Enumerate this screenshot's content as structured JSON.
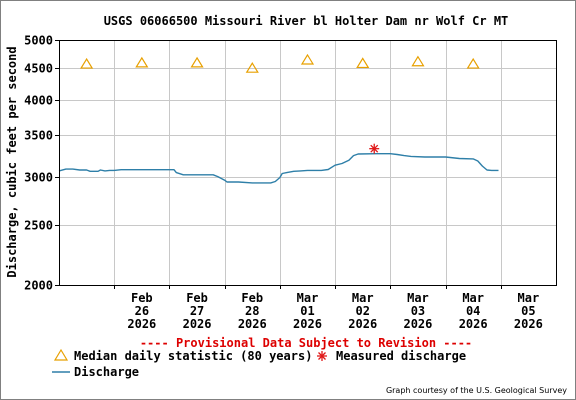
{
  "chart_data": {
    "type": "line",
    "title": "USGS 06066500 Missouri River bl Holter Dam nr Wolf Cr MT",
    "ylabel": "Discharge, cubic feet per second",
    "xlabel": "",
    "y_scale": "log",
    "ylim": [
      2000,
      5000
    ],
    "y_ticks": [
      {
        "value": 2000,
        "label": "2000"
      },
      {
        "value": 2500,
        "label": "2500"
      },
      {
        "value": 3000,
        "label": "3000"
      },
      {
        "value": 3500,
        "label": "3500"
      },
      {
        "value": 4000,
        "label": "4000"
      },
      {
        "value": 4500,
        "label": "4500"
      },
      {
        "value": 5000,
        "label": "5000"
      }
    ],
    "x_range": [
      "2026-02-25T00:00",
      "2026-03-06T00:00"
    ],
    "x_ticks": [
      {
        "date": "2026-02-26T00:00",
        "label": [
          "Feb",
          "26",
          "2026"
        ]
      },
      {
        "date": "2026-02-27T00:00",
        "label": [
          "Feb",
          "27",
          "2026"
        ]
      },
      {
        "date": "2026-02-28T00:00",
        "label": [
          "Feb",
          "28",
          "2026"
        ]
      },
      {
        "date": "2026-03-01T00:00",
        "label": [
          "Mar",
          "01",
          "2026"
        ]
      },
      {
        "date": "2026-03-02T00:00",
        "label": [
          "Mar",
          "02",
          "2026"
        ]
      },
      {
        "date": "2026-03-03T00:00",
        "label": [
          "Mar",
          "03",
          "2026"
        ]
      },
      {
        "date": "2026-03-04T00:00",
        "label": [
          "Mar",
          "04",
          "2026"
        ]
      },
      {
        "date": "2026-03-05T00:00",
        "label": [
          "Mar",
          "05",
          "2026"
        ]
      }
    ],
    "grid": true,
    "colors": {
      "discharge": "#2e7fa8",
      "median": "#e8a000",
      "measured": "#e01818",
      "provisional": "#dd0000",
      "grid": "#c8c8c8",
      "axis": "#000000"
    },
    "series": [
      {
        "name": "Discharge",
        "kind": "line",
        "points": [
          [
            "2026-02-25T00:00",
            3065
          ],
          [
            "2026-02-25T03:00",
            3085
          ],
          [
            "2026-02-25T06:00",
            3085
          ],
          [
            "2026-02-25T09:00",
            3075
          ],
          [
            "2026-02-25T12:00",
            3075
          ],
          [
            "2026-02-25T13:30",
            3060
          ],
          [
            "2026-02-25T17:00",
            3060
          ],
          [
            "2026-02-25T18:00",
            3075
          ],
          [
            "2026-02-25T20:00",
            3065
          ],
          [
            "2026-02-25T22:00",
            3070
          ],
          [
            "2026-02-26T00:00",
            3070
          ],
          [
            "2026-02-26T03:00",
            3078
          ],
          [
            "2026-02-26T12:00",
            3078
          ],
          [
            "2026-02-26T22:00",
            3078
          ],
          [
            "2026-02-27T02:00",
            3078
          ],
          [
            "2026-02-27T03:00",
            3045
          ],
          [
            "2026-02-27T06:00",
            3020
          ],
          [
            "2026-02-27T19:00",
            3020
          ],
          [
            "2026-02-27T21:00",
            3000
          ],
          [
            "2026-02-28T00:00",
            2960
          ],
          [
            "2026-02-28T01:00",
            2940
          ],
          [
            "2026-02-28T06:00",
            2940
          ],
          [
            "2026-02-28T12:00",
            2930
          ],
          [
            "2026-02-28T20:00",
            2930
          ],
          [
            "2026-02-28T22:00",
            2945
          ],
          [
            "2026-03-01T00:00",
            2990
          ],
          [
            "2026-03-01T01:00",
            3035
          ],
          [
            "2026-03-01T03:00",
            3045
          ],
          [
            "2026-03-01T06:00",
            3060
          ],
          [
            "2026-03-01T09:00",
            3065
          ],
          [
            "2026-03-01T12:00",
            3070
          ],
          [
            "2026-03-01T18:00",
            3070
          ],
          [
            "2026-03-01T21:00",
            3080
          ],
          [
            "2026-03-02T00:00",
            3130
          ],
          [
            "2026-03-02T03:00",
            3150
          ],
          [
            "2026-03-02T06:00",
            3190
          ],
          [
            "2026-03-02T08:00",
            3245
          ],
          [
            "2026-03-02T10:00",
            3265
          ],
          [
            "2026-03-02T18:00",
            3268
          ],
          [
            "2026-03-03T00:00",
            3268
          ],
          [
            "2026-03-03T03:00",
            3258
          ],
          [
            "2026-03-03T06:00",
            3245
          ],
          [
            "2026-03-03T09:00",
            3235
          ],
          [
            "2026-03-03T15:00",
            3228
          ],
          [
            "2026-03-03T18:00",
            3228
          ],
          [
            "2026-03-04T00:00",
            3228
          ],
          [
            "2026-03-04T06:00",
            3210
          ],
          [
            "2026-03-04T12:00",
            3205
          ],
          [
            "2026-03-04T14:00",
            3180
          ],
          [
            "2026-03-04T16:00",
            3120
          ],
          [
            "2026-03-04T18:00",
            3075
          ],
          [
            "2026-03-04T20:00",
            3070
          ],
          [
            "2026-03-04T23:00",
            3070
          ]
        ]
      },
      {
        "name": "Median daily statistic (80 years)",
        "kind": "marker-triangle",
        "points": [
          [
            "2026-02-25T12:00",
            4570
          ],
          [
            "2026-02-26T12:00",
            4590
          ],
          [
            "2026-02-27T12:00",
            4590
          ],
          [
            "2026-02-28T12:00",
            4500
          ],
          [
            "2026-03-01T12:00",
            4640
          ],
          [
            "2026-03-02T12:00",
            4580
          ],
          [
            "2026-03-03T12:00",
            4610
          ],
          [
            "2026-03-04T12:00",
            4570
          ]
        ]
      },
      {
        "name": "Measured discharge",
        "kind": "marker-star",
        "points": [
          [
            "2026-03-02T17:00",
            3330
          ]
        ]
      }
    ],
    "provisional_note": "---- Provisional Data Subject to Revision ----",
    "legend": {
      "placement": "bottom",
      "median": "Median daily statistic (80 years)",
      "measured": "Measured discharge",
      "discharge": "Discharge"
    },
    "credit": "Graph courtesy of the U.S. Geological Survey"
  }
}
